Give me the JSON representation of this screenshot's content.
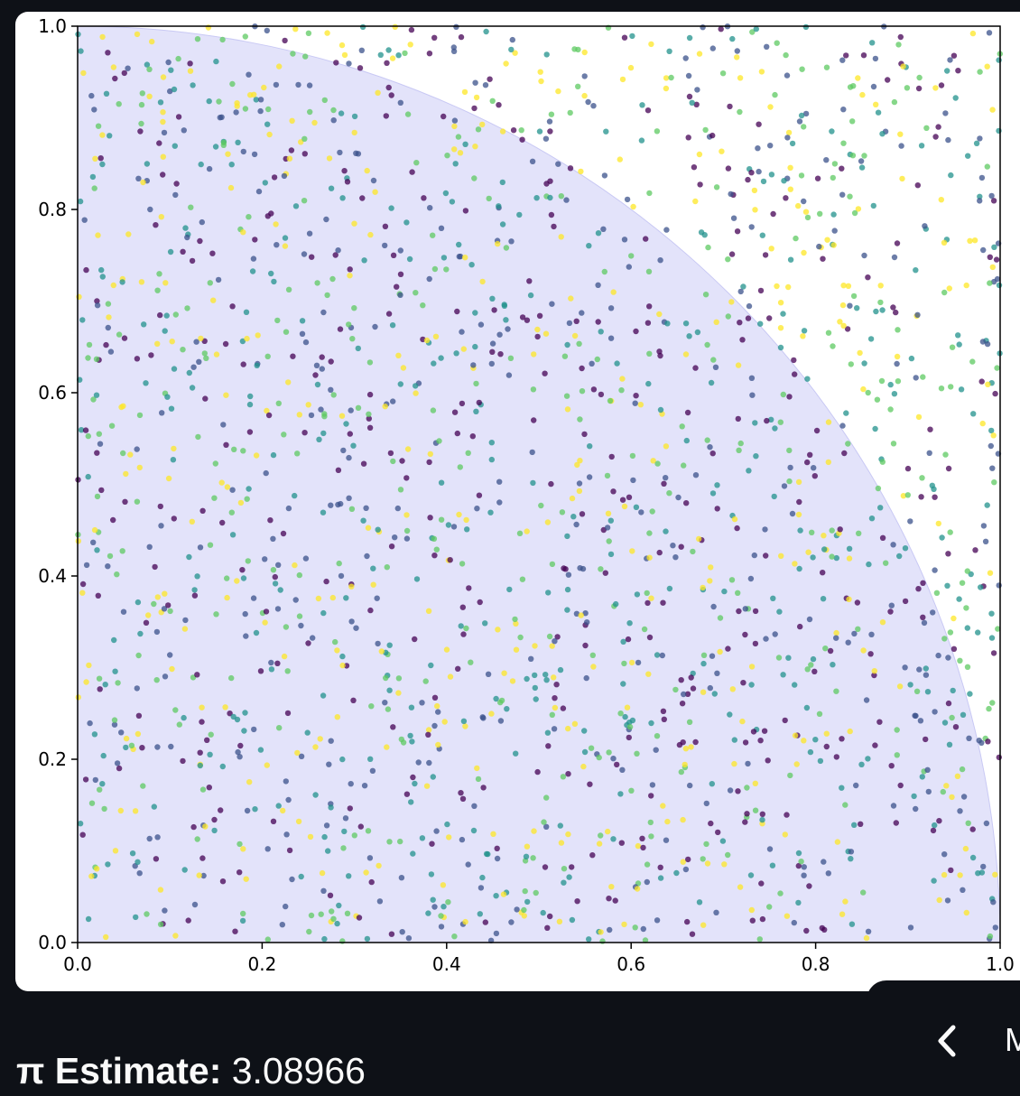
{
  "chart_data": {
    "type": "scatter",
    "title": "",
    "xlabel": "",
    "ylabel": "",
    "xlim": [
      0.0,
      1.0
    ],
    "ylim": [
      0.0,
      1.0
    ],
    "x_ticks": [
      "0.0",
      "0.2",
      "0.4",
      "0.6",
      "0.8",
      "1.0"
    ],
    "y_ticks": [
      "0.0",
      "0.2",
      "0.4",
      "0.6",
      "0.8",
      "1.0"
    ],
    "grid": false,
    "legend": "none",
    "shaded_region": {
      "shape": "quarter-circle",
      "radius": 1.0,
      "fill": "#e3e3fa"
    },
    "colormap": "viridis",
    "palette": [
      "#440154",
      "#3b528b",
      "#21918c",
      "#5ec962",
      "#fde725"
    ],
    "point_count": 2000,
    "sample": "uniform random points on the unit square"
  },
  "result": {
    "label": "π Estimate:",
    "value": "3.08966"
  },
  "pager": {
    "prev_icon": "chevron-left-icon",
    "next_text": "M"
  },
  "theme": {
    "page_bg": "#0e1117",
    "card_bg": "#ffffff",
    "text": "#fafafa"
  }
}
